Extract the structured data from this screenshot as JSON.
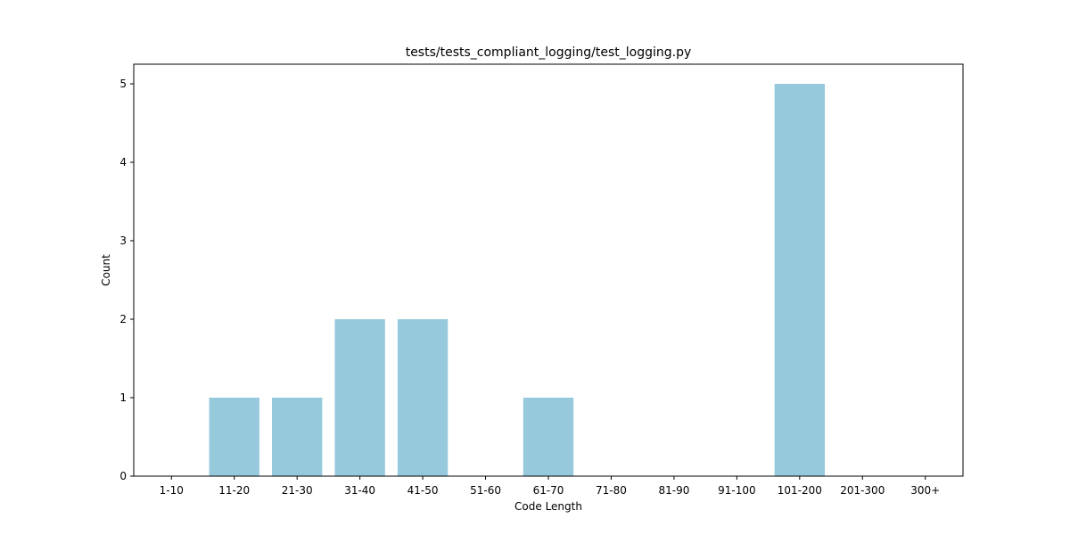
{
  "chart_data": {
    "type": "bar",
    "title": "tests/tests_compliant_logging/test_logging.py",
    "xlabel": "Code Length",
    "ylabel": "Count",
    "categories": [
      "1-10",
      "11-20",
      "21-30",
      "31-40",
      "41-50",
      "51-60",
      "61-70",
      "71-80",
      "81-90",
      "91-100",
      "101-200",
      "201-300",
      "300+"
    ],
    "values": [
      0,
      1,
      1,
      2,
      2,
      0,
      1,
      0,
      0,
      0,
      5,
      0,
      0
    ],
    "yticks": [
      0,
      1,
      2,
      3,
      4,
      5
    ],
    "ylim": [
      0,
      5.25
    ],
    "bar_color": "#96c9dc",
    "grid": false,
    "legend": "none"
  }
}
